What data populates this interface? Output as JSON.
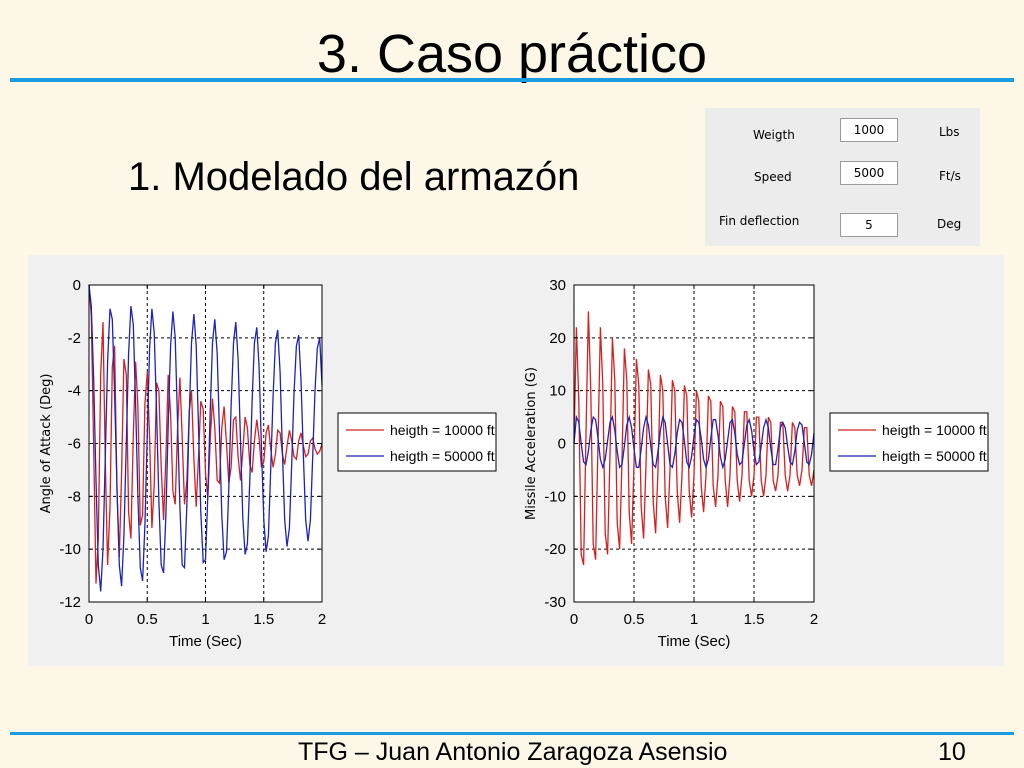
{
  "slide": {
    "title": "3. Caso práctico",
    "subtitle": "1. Modelado del armazón",
    "footer": "TFG – Juan Antonio Zaragoza Asensio",
    "page_number": "10",
    "accent_color": "#1d9be0"
  },
  "params": {
    "weight_label": "Weigth",
    "weight_value": "1000",
    "weight_unit": "Lbs",
    "speed_label": "Speed",
    "speed_value": "5000",
    "speed_unit": "Ft/s",
    "fin_label": "Fin deflection",
    "fin_value": "5",
    "fin_unit": "Deg"
  },
  "chart_data": [
    {
      "type": "line",
      "xlabel": "Time (Sec)",
      "ylabel": "Angle of Attack (Deg)",
      "xlim": [
        0,
        2
      ],
      "ylim": [
        -12,
        0
      ],
      "xticks": [
        "0",
        "0.5",
        "1",
        "1.5",
        "2"
      ],
      "yticks": [
        "0",
        "-2",
        "-4",
        "-6",
        "-8",
        "-10",
        "-12"
      ],
      "grid": true,
      "legend_position": "right",
      "series": [
        {
          "name": "heigth = 10000 ft",
          "color": "#d42020",
          "x": [
            0,
            0.02,
            0.04,
            0.06,
            0.08,
            0.1,
            0.12,
            0.14,
            0.16,
            0.18,
            0.2,
            0.22,
            0.24,
            0.26,
            0.28,
            0.3,
            0.32,
            0.34,
            0.36,
            0.38,
            0.4,
            0.42,
            0.44,
            0.46,
            0.48,
            0.5,
            0.52,
            0.54,
            0.56,
            0.58,
            0.6,
            0.62,
            0.64,
            0.66,
            0.68,
            0.7,
            0.72,
            0.74,
            0.76,
            0.78,
            0.8,
            0.82,
            0.84,
            0.86,
            0.88,
            0.9,
            0.92,
            0.94,
            0.96,
            0.98,
            1.0,
            1.02,
            1.04,
            1.06,
            1.08,
            1.1,
            1.12,
            1.14,
            1.16,
            1.18,
            1.2,
            1.22,
            1.24,
            1.26,
            1.28,
            1.3,
            1.32,
            1.34,
            1.36,
            1.38,
            1.4,
            1.42,
            1.44,
            1.46,
            1.48,
            1.5,
            1.52,
            1.54,
            1.56,
            1.58,
            1.6,
            1.62,
            1.64,
            1.66,
            1.68,
            1.7,
            1.72,
            1.74,
            1.76,
            1.78,
            1.8,
            1.82,
            1.84,
            1.86,
            1.88,
            1.9,
            1.92,
            1.94,
            1.96,
            1.98,
            2.0
          ],
          "values": [
            0,
            -1.2,
            -6.2,
            -11.3,
            -9.6,
            -3.4,
            -1.4,
            -6.7,
            -10.6,
            -8.4,
            -3.1,
            -2.3,
            -7.8,
            -10.3,
            -7.1,
            -2.8,
            -3.4,
            -8.6,
            -9.6,
            -5.7,
            -2.9,
            -4.6,
            -9.1,
            -8.7,
            -4.5,
            -3.3,
            -5.8,
            -9.2,
            -7.6,
            -3.7,
            -4.0,
            -6.9,
            -8.9,
            -6.5,
            -3.4,
            -4.9,
            -7.8,
            -8.3,
            -5.5,
            -3.5,
            -5.8,
            -8.3,
            -7.4,
            -4.8,
            -4.0,
            -6.6,
            -8.4,
            -6.5,
            -4.4,
            -4.7,
            -7.1,
            -8.1,
            -5.9,
            -4.3,
            -5.4,
            -7.4,
            -7.5,
            -5.4,
            -4.6,
            -6.0,
            -7.5,
            -6.9,
            -5.1,
            -5.0,
            -6.5,
            -7.4,
            -6.3,
            -5.0,
            -5.4,
            -6.8,
            -7.1,
            -5.9,
            -5.1,
            -5.8,
            -6.9,
            -6.7,
            -5.6,
            -5.3,
            -6.2,
            -6.9,
            -6.4,
            -5.5,
            -5.6,
            -6.4,
            -6.8,
            -6.1,
            -5.5,
            -5.9,
            -6.5,
            -6.6,
            -5.9,
            -5.6,
            -6.1,
            -6.5,
            -6.4,
            -5.9,
            -5.8,
            -6.2,
            -6.4,
            -6.3,
            -6.0
          ]
        },
        {
          "name": "heigth = 50000 ft",
          "color": "#1c23b8",
          "x": [
            0,
            0.02,
            0.04,
            0.06,
            0.08,
            0.1,
            0.12,
            0.14,
            0.16,
            0.18,
            0.2,
            0.22,
            0.24,
            0.26,
            0.28,
            0.3,
            0.32,
            0.34,
            0.36,
            0.38,
            0.4,
            0.42,
            0.44,
            0.46,
            0.48,
            0.5,
            0.52,
            0.54,
            0.56,
            0.58,
            0.6,
            0.62,
            0.64,
            0.66,
            0.68,
            0.7,
            0.72,
            0.74,
            0.76,
            0.78,
            0.8,
            0.82,
            0.84,
            0.86,
            0.88,
            0.9,
            0.92,
            0.94,
            0.96,
            0.98,
            1.0,
            1.02,
            1.04,
            1.06,
            1.08,
            1.1,
            1.12,
            1.14,
            1.16,
            1.18,
            1.2,
            1.22,
            1.24,
            1.26,
            1.28,
            1.3,
            1.32,
            1.34,
            1.36,
            1.38,
            1.4,
            1.42,
            1.44,
            1.46,
            1.48,
            1.5,
            1.52,
            1.54,
            1.56,
            1.58,
            1.6,
            1.62,
            1.64,
            1.66,
            1.68,
            1.7,
            1.72,
            1.74,
            1.76,
            1.78,
            1.8,
            1.82,
            1.84,
            1.86,
            1.88,
            1.9,
            1.92,
            1.94,
            1.96,
            1.98,
            2.0
          ],
          "values": [
            0,
            -0.8,
            -3.6,
            -7.4,
            -10.6,
            -11.6,
            -10.0,
            -6.5,
            -2.9,
            -0.9,
            -1.3,
            -4.1,
            -7.7,
            -10.6,
            -11.4,
            -9.5,
            -6.0,
            -2.6,
            -0.8,
            -1.5,
            -4.5,
            -8.0,
            -10.7,
            -11.2,
            -9.1,
            -5.6,
            -2.4,
            -0.9,
            -1.8,
            -4.8,
            -8.2,
            -10.6,
            -10.9,
            -8.7,
            -5.3,
            -2.3,
            -1.0,
            -2.0,
            -5.1,
            -8.4,
            -10.6,
            -10.7,
            -8.3,
            -5.0,
            -2.2,
            -1.1,
            -2.3,
            -5.4,
            -8.6,
            -10.5,
            -10.4,
            -8.0,
            -4.8,
            -2.2,
            -1.3,
            -2.6,
            -5.6,
            -8.7,
            -10.4,
            -10.1,
            -7.7,
            -4.6,
            -2.2,
            -1.4,
            -2.8,
            -5.9,
            -8.8,
            -10.2,
            -9.8,
            -7.4,
            -4.4,
            -2.2,
            -1.6,
            -3.1,
            -6.1,
            -8.9,
            -10.1,
            -9.5,
            -7.0,
            -4.2,
            -2.2,
            -1.7,
            -3.3,
            -6.3,
            -8.9,
            -9.9,
            -9.2,
            -6.8,
            -4.1,
            -2.3,
            -1.9,
            -3.6,
            -6.5,
            -8.9,
            -9.7,
            -8.9,
            -6.5,
            -4.0,
            -2.4,
            -2.0,
            -3.8
          ]
        }
      ]
    },
    {
      "type": "line",
      "xlabel": "Time (Sec)",
      "ylabel": "Missile Acceleration (G)",
      "xlim": [
        0,
        2
      ],
      "ylim": [
        -30,
        30
      ],
      "xticks": [
        "0",
        "0.5",
        "1",
        "1.5",
        "2"
      ],
      "yticks": [
        "30",
        "20",
        "10",
        "0",
        "-10",
        "-20",
        "-30"
      ],
      "grid": true,
      "legend_position": "right",
      "series": [
        {
          "name": "heigth = 10000 ft",
          "color": "#d42020",
          "x": [
            0,
            0.02,
            0.04,
            0.06,
            0.08,
            0.1,
            0.12,
            0.14,
            0.16,
            0.18,
            0.2,
            0.22,
            0.24,
            0.26,
            0.28,
            0.3,
            0.32,
            0.34,
            0.36,
            0.38,
            0.4,
            0.42,
            0.44,
            0.46,
            0.48,
            0.5,
            0.52,
            0.54,
            0.56,
            0.58,
            0.6,
            0.62,
            0.64,
            0.66,
            0.68,
            0.7,
            0.72,
            0.74,
            0.76,
            0.78,
            0.8,
            0.82,
            0.84,
            0.86,
            0.88,
            0.9,
            0.92,
            0.94,
            0.96,
            0.98,
            1.0,
            1.02,
            1.04,
            1.06,
            1.08,
            1.1,
            1.12,
            1.14,
            1.16,
            1.18,
            1.2,
            1.22,
            1.24,
            1.26,
            1.28,
            1.3,
            1.32,
            1.34,
            1.36,
            1.38,
            1.4,
            1.42,
            1.44,
            1.46,
            1.48,
            1.5,
            1.52,
            1.54,
            1.56,
            1.58,
            1.6,
            1.62,
            1.64,
            1.66,
            1.68,
            1.7,
            1.72,
            1.74,
            1.76,
            1.78,
            1.8,
            1.82,
            1.84,
            1.86,
            1.88,
            1.9,
            1.92,
            1.94,
            1.96,
            1.98,
            2.0
          ],
          "values": [
            0,
            22,
            8,
            -21,
            -23,
            2,
            25,
            10,
            -19,
            -22,
            0,
            22,
            11,
            -17,
            -21,
            -2,
            20,
            12,
            -15,
            -20,
            -3,
            18,
            12,
            -13,
            -19,
            -4,
            16,
            11,
            -12,
            -18,
            -4,
            14,
            11,
            -11,
            -17,
            -5,
            13,
            10,
            -10,
            -16,
            -5,
            12,
            10,
            -9,
            -15,
            -6,
            11,
            9,
            -9,
            -14,
            -6,
            10,
            8,
            -8,
            -13,
            -6,
            9,
            8,
            -8,
            -12,
            -6,
            8,
            7,
            -7,
            -12,
            -6,
            7,
            6,
            -7,
            -11,
            -6,
            6,
            6,
            -7,
            -10,
            -6,
            5,
            5,
            -7,
            -10,
            -6,
            5,
            4,
            -7,
            -9,
            -6,
            4,
            4,
            -6,
            -9,
            -6,
            4,
            3,
            -6,
            -8,
            -5,
            3,
            3,
            -6,
            -8,
            -5
          ]
        },
        {
          "name": "heigth = 50000 ft",
          "color": "#1c23b8",
          "x": [
            0,
            0.02,
            0.04,
            0.06,
            0.08,
            0.1,
            0.12,
            0.14,
            0.16,
            0.18,
            0.2,
            0.22,
            0.24,
            0.26,
            0.28,
            0.3,
            0.32,
            0.34,
            0.36,
            0.38,
            0.4,
            0.42,
            0.44,
            0.46,
            0.48,
            0.5,
            0.52,
            0.54,
            0.56,
            0.58,
            0.6,
            0.62,
            0.64,
            0.66,
            0.68,
            0.7,
            0.72,
            0.74,
            0.76,
            0.78,
            0.8,
            0.82,
            0.84,
            0.86,
            0.88,
            0.9,
            0.92,
            0.94,
            0.96,
            0.98,
            1.0,
            1.02,
            1.04,
            1.06,
            1.08,
            1.1,
            1.12,
            1.14,
            1.16,
            1.18,
            1.2,
            1.22,
            1.24,
            1.26,
            1.28,
            1.3,
            1.32,
            1.34,
            1.36,
            1.38,
            1.4,
            1.42,
            1.44,
            1.46,
            1.48,
            1.5,
            1.52,
            1.54,
            1.56,
            1.58,
            1.6,
            1.62,
            1.64,
            1.66,
            1.68,
            1.7,
            1.72,
            1.74,
            1.76,
            1.78,
            1.8,
            1.82,
            1.84,
            1.86,
            1.88,
            1.9,
            1.92,
            1.94,
            1.96,
            1.98,
            2.0
          ],
          "values": [
            0,
            5,
            4,
            0,
            -3.5,
            -4,
            -1.5,
            2.5,
            5,
            4.5,
            1,
            -3,
            -4.5,
            -3,
            0.5,
            4,
            5,
            2.5,
            -1.5,
            -4.5,
            -4,
            -0.5,
            3.5,
            5,
            3,
            -1,
            -4.5,
            -4.5,
            -1,
            3,
            5,
            3.5,
            -0.5,
            -4,
            -4.5,
            -1.5,
            2.5,
            5,
            4,
            0,
            -4,
            -4.5,
            -2,
            2,
            4.5,
            4,
            0.5,
            -3.5,
            -4.5,
            -2.5,
            1.5,
            4.5,
            4,
            1,
            -3,
            -4.5,
            -3,
            1,
            4.5,
            4.5,
            1.5,
            -2.5,
            -4.5,
            -3,
            0.5,
            4,
            4.5,
            2,
            -2,
            -4,
            -3.5,
            0,
            3.5,
            4.5,
            2.5,
            -1.5,
            -4,
            -3.5,
            -0.5,
            3,
            4.5,
            3,
            -1,
            -4,
            -4,
            -1,
            3,
            4,
            3,
            -0.5,
            -3.5,
            -4,
            -1.5,
            2.5,
            4,
            3.5,
            0,
            -3.5,
            -4,
            -2,
            2
          ]
        }
      ]
    }
  ]
}
